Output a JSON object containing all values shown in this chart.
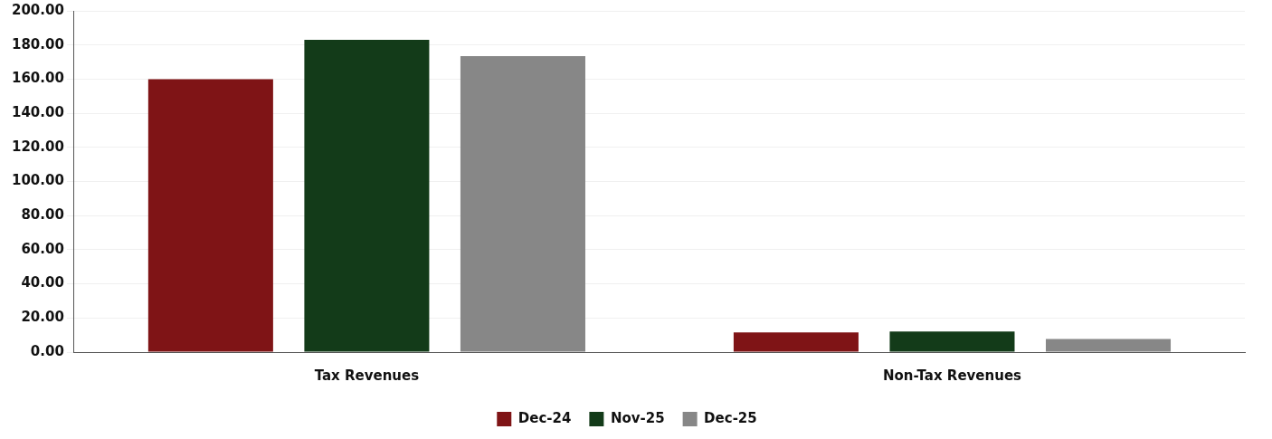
{
  "chart_data": {
    "type": "bar",
    "categories": [
      "Tax Revenues",
      "Non-Tax Revenues"
    ],
    "series": [
      {
        "name": "Dec-24",
        "color": "#7f1416",
        "values": [
          160,
          11.5
        ]
      },
      {
        "name": "Nov-25",
        "color": "#133b19",
        "values": [
          183,
          12.1
        ]
      },
      {
        "name": "Dec-25",
        "color": "#878787",
        "values": [
          173.5,
          7.7
        ]
      }
    ],
    "ylim": [
      0,
      200
    ],
    "yticks": [
      {
        "value": 0,
        "label": "0.00"
      },
      {
        "value": 20,
        "label": "20.00"
      },
      {
        "value": 40,
        "label": "40.00"
      },
      {
        "value": 60,
        "label": "60.00"
      },
      {
        "value": 80,
        "label": "80.00"
      },
      {
        "value": 100,
        "label": "100.00"
      },
      {
        "value": 120,
        "label": "120.00"
      },
      {
        "value": 140,
        "label": "140.00"
      },
      {
        "value": 160,
        "label": "160.00"
      },
      {
        "value": 180,
        "label": "180.00"
      },
      {
        "value": 200,
        "label": "200.00"
      }
    ],
    "grid": "y",
    "legend": "bottom"
  }
}
